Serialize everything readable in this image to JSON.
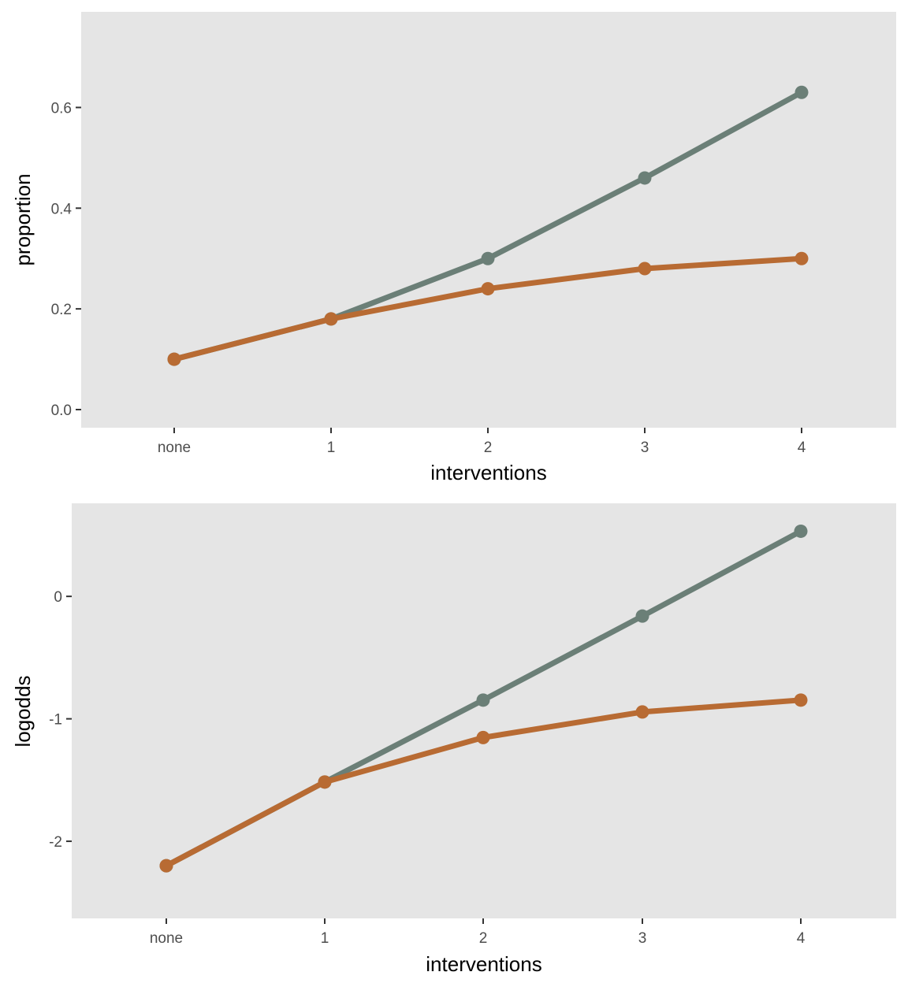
{
  "colors": {
    "panel_background": "#e5e5e5",
    "tick_mark": "#333333",
    "tick_text": "#4d4d4d"
  },
  "chart_data": [
    {
      "type": "line",
      "xlabel": "interventions",
      "ylabel": "proportion",
      "categories": [
        "none",
        "1",
        "2",
        "3",
        "4"
      ],
      "yticks": [
        "0.0",
        "0.2",
        "0.4",
        "0.6"
      ],
      "ytick_values": [
        0.0,
        0.2,
        0.4,
        0.6
      ],
      "ylim": [
        -0.036,
        0.79
      ],
      "grid": false,
      "legend": "none",
      "series": [
        {
          "color": "#6b7f77",
          "values": [
            0.1,
            0.18,
            0.3,
            0.46,
            0.63
          ]
        },
        {
          "color": "#b86b33",
          "values": [
            0.1,
            0.18,
            0.24,
            0.28,
            0.3
          ]
        }
      ]
    },
    {
      "type": "line",
      "xlabel": "interventions",
      "ylabel": "logodds",
      "categories": [
        "none",
        "1",
        "2",
        "3",
        "4"
      ],
      "yticks": [
        "-2",
        "-1",
        "0"
      ],
      "ytick_values": [
        -2,
        -1,
        0
      ],
      "ylim": [
        -2.63,
        0.76
      ],
      "grid": false,
      "legend": "none",
      "series": [
        {
          "color": "#6b7f77",
          "values": [
            -2.2,
            -1.516,
            -0.847,
            -0.161,
            0.532
          ]
        },
        {
          "color": "#b86b33",
          "values": [
            -2.2,
            -1.516,
            -1.153,
            -0.944,
            -0.847
          ]
        }
      ]
    }
  ]
}
